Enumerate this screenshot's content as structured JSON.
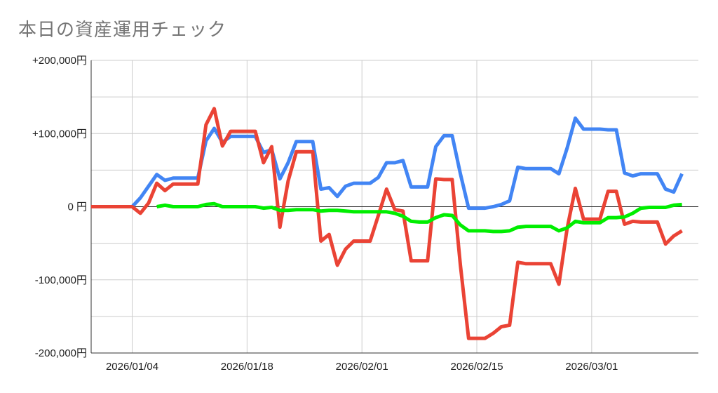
{
  "title": "本日の資産運用チェック",
  "colors": {
    "series_a": "#4285f4",
    "series_b": "#ea4335",
    "series_c": "#00ee00",
    "grid": "#cccccc",
    "zero_line": "#333333"
  },
  "chart_data": {
    "type": "line",
    "title": "本日の資産運用チェック",
    "xlabel": "",
    "ylabel": "",
    "x_range": [
      "2025-12-30",
      "2026-03-14"
    ],
    "ylim": [
      -200000,
      200000
    ],
    "yticks": [
      {
        "value": 200000,
        "label": "+200,000円"
      },
      {
        "value": 100000,
        "label": "+100,000円"
      },
      {
        "value": 0,
        "label": "0 円"
      },
      {
        "value": -100000,
        "label": "-100,000円"
      },
      {
        "value": -200000,
        "label": "-200,000円"
      }
    ],
    "xticks": [
      {
        "date": "2026-01-04",
        "label": "2026/01/04"
      },
      {
        "date": "2026-01-18",
        "label": "2026/01/18"
      },
      {
        "date": "2026-02-01",
        "label": "2026/02/01"
      },
      {
        "date": "2026-02-15",
        "label": "2026/02/15"
      },
      {
        "date": "2026-03-01",
        "label": "2026/03/01"
      }
    ],
    "grid": true,
    "legend": "none",
    "series": [
      {
        "color": "#4285f4",
        "points": [
          [
            "2025-12-30",
            0
          ],
          [
            "2025-12-31",
            0
          ],
          [
            "2026-01-01",
            0
          ],
          [
            "2026-01-02",
            0
          ],
          [
            "2026-01-03",
            0
          ],
          [
            "2026-01-04",
            0
          ],
          [
            "2026-01-05",
            12000
          ],
          [
            "2026-01-06",
            28000
          ],
          [
            "2026-01-07",
            44000
          ],
          [
            "2026-01-08",
            36000
          ],
          [
            "2026-01-09",
            39000
          ],
          [
            "2026-01-10",
            39000
          ],
          [
            "2026-01-11",
            39000
          ],
          [
            "2026-01-12",
            39000
          ],
          [
            "2026-01-13",
            90000
          ],
          [
            "2026-01-14",
            107000
          ],
          [
            "2026-01-15",
            88000
          ],
          [
            "2026-01-16",
            96000
          ],
          [
            "2026-01-17",
            96000
          ],
          [
            "2026-01-18",
            96000
          ],
          [
            "2026-01-19",
            96000
          ],
          [
            "2026-01-20",
            74000
          ],
          [
            "2026-01-21",
            78000
          ],
          [
            "2026-01-22",
            38000
          ],
          [
            "2026-01-23",
            60000
          ],
          [
            "2026-01-24",
            89000
          ],
          [
            "2026-01-25",
            89000
          ],
          [
            "2026-01-26",
            89000
          ],
          [
            "2026-01-27",
            24000
          ],
          [
            "2026-01-28",
            26000
          ],
          [
            "2026-01-29",
            14000
          ],
          [
            "2026-01-30",
            28000
          ],
          [
            "2026-01-31",
            32000
          ],
          [
            "2026-02-01",
            32000
          ],
          [
            "2026-02-02",
            32000
          ],
          [
            "2026-02-03",
            40000
          ],
          [
            "2026-02-04",
            60000
          ],
          [
            "2026-02-05",
            60000
          ],
          [
            "2026-02-06",
            63000
          ],
          [
            "2026-02-07",
            27000
          ],
          [
            "2026-02-08",
            27000
          ],
          [
            "2026-02-09",
            27000
          ],
          [
            "2026-02-10",
            82000
          ],
          [
            "2026-02-11",
            97000
          ],
          [
            "2026-02-12",
            97000
          ],
          [
            "2026-02-13",
            45000
          ],
          [
            "2026-02-14",
            -2000
          ],
          [
            "2026-02-15",
            -2000
          ],
          [
            "2026-02-16",
            -2000
          ],
          [
            "2026-02-17",
            0
          ],
          [
            "2026-02-18",
            3000
          ],
          [
            "2026-02-19",
            8000
          ],
          [
            "2026-02-20",
            54000
          ],
          [
            "2026-02-21",
            52000
          ],
          [
            "2026-02-22",
            52000
          ],
          [
            "2026-02-23",
            52000
          ],
          [
            "2026-02-24",
            52000
          ],
          [
            "2026-02-25",
            45000
          ],
          [
            "2026-02-26",
            80000
          ],
          [
            "2026-02-27",
            121000
          ],
          [
            "2026-02-28",
            106000
          ],
          [
            "2026-03-01",
            106000
          ],
          [
            "2026-03-02",
            106000
          ],
          [
            "2026-03-03",
            105000
          ],
          [
            "2026-03-04",
            105000
          ],
          [
            "2026-03-05",
            46000
          ],
          [
            "2026-03-06",
            42000
          ],
          [
            "2026-03-07",
            45000
          ],
          [
            "2026-03-08",
            45000
          ],
          [
            "2026-03-09",
            45000
          ],
          [
            "2026-03-10",
            24000
          ],
          [
            "2026-03-11",
            20000
          ],
          [
            "2026-03-12",
            45000
          ]
        ]
      },
      {
        "color": "#ea4335",
        "points": [
          [
            "2025-12-30",
            0
          ],
          [
            "2025-12-31",
            0
          ],
          [
            "2026-01-01",
            0
          ],
          [
            "2026-01-02",
            0
          ],
          [
            "2026-01-03",
            0
          ],
          [
            "2026-01-04",
            0
          ],
          [
            "2026-01-05",
            -9000
          ],
          [
            "2026-01-06",
            5000
          ],
          [
            "2026-01-07",
            32000
          ],
          [
            "2026-01-08",
            22000
          ],
          [
            "2026-01-09",
            31000
          ],
          [
            "2026-01-10",
            31000
          ],
          [
            "2026-01-11",
            31000
          ],
          [
            "2026-01-12",
            31000
          ],
          [
            "2026-01-13",
            112000
          ],
          [
            "2026-01-14",
            134000
          ],
          [
            "2026-01-15",
            83000
          ],
          [
            "2026-01-16",
            103000
          ],
          [
            "2026-01-17",
            103000
          ],
          [
            "2026-01-18",
            103000
          ],
          [
            "2026-01-19",
            103000
          ],
          [
            "2026-01-20",
            60000
          ],
          [
            "2026-01-21",
            82000
          ],
          [
            "2026-01-22",
            -28000
          ],
          [
            "2026-01-23",
            35000
          ],
          [
            "2026-01-24",
            75000
          ],
          [
            "2026-01-25",
            75000
          ],
          [
            "2026-01-26",
            75000
          ],
          [
            "2026-01-27",
            -47000
          ],
          [
            "2026-01-28",
            -38000
          ],
          [
            "2026-01-29",
            -80000
          ],
          [
            "2026-01-30",
            -58000
          ],
          [
            "2026-01-31",
            -47000
          ],
          [
            "2026-02-01",
            -47000
          ],
          [
            "2026-02-02",
            -47000
          ],
          [
            "2026-02-03",
            -12000
          ],
          [
            "2026-02-04",
            24000
          ],
          [
            "2026-02-05",
            -4000
          ],
          [
            "2026-02-06",
            -6000
          ],
          [
            "2026-02-07",
            -74000
          ],
          [
            "2026-02-08",
            -74000
          ],
          [
            "2026-02-09",
            -74000
          ],
          [
            "2026-02-10",
            38000
          ],
          [
            "2026-02-11",
            37000
          ],
          [
            "2026-02-12",
            37000
          ],
          [
            "2026-02-13",
            -80000
          ],
          [
            "2026-02-14",
            -180000
          ],
          [
            "2026-02-15",
            -180000
          ],
          [
            "2026-02-16",
            -180000
          ],
          [
            "2026-02-17",
            -173000
          ],
          [
            "2026-02-18",
            -164000
          ],
          [
            "2026-02-19",
            -162000
          ],
          [
            "2026-02-20",
            -76000
          ],
          [
            "2026-02-21",
            -78000
          ],
          [
            "2026-02-22",
            -78000
          ],
          [
            "2026-02-23",
            -78000
          ],
          [
            "2026-02-24",
            -78000
          ],
          [
            "2026-02-25",
            -106000
          ],
          [
            "2026-02-26",
            -30000
          ],
          [
            "2026-02-27",
            25000
          ],
          [
            "2026-02-28",
            -17000
          ],
          [
            "2026-03-01",
            -17000
          ],
          [
            "2026-03-02",
            -17000
          ],
          [
            "2026-03-03",
            21000
          ],
          [
            "2026-03-04",
            21000
          ],
          [
            "2026-03-05",
            -24000
          ],
          [
            "2026-03-06",
            -20000
          ],
          [
            "2026-03-07",
            -21000
          ],
          [
            "2026-03-08",
            -21000
          ],
          [
            "2026-03-09",
            -21000
          ],
          [
            "2026-03-10",
            -51000
          ],
          [
            "2026-03-11",
            -40000
          ],
          [
            "2026-03-12",
            -33000
          ]
        ]
      },
      {
        "color": "#00ee00",
        "points": [
          [
            "2026-01-07",
            0
          ],
          [
            "2026-01-08",
            2000
          ],
          [
            "2026-01-09",
            0
          ],
          [
            "2026-01-10",
            0
          ],
          [
            "2026-01-11",
            0
          ],
          [
            "2026-01-12",
            0
          ],
          [
            "2026-01-13",
            3000
          ],
          [
            "2026-01-14",
            4000
          ],
          [
            "2026-01-15",
            0
          ],
          [
            "2026-01-16",
            0
          ],
          [
            "2026-01-17",
            0
          ],
          [
            "2026-01-18",
            0
          ],
          [
            "2026-01-19",
            0
          ],
          [
            "2026-01-20",
            -2000
          ],
          [
            "2026-01-21",
            -1000
          ],
          [
            "2026-01-22",
            -5000
          ],
          [
            "2026-01-23",
            -5000
          ],
          [
            "2026-01-24",
            -4000
          ],
          [
            "2026-01-25",
            -4000
          ],
          [
            "2026-01-26",
            -4000
          ],
          [
            "2026-01-27",
            -6000
          ],
          [
            "2026-01-28",
            -5000
          ],
          [
            "2026-01-29",
            -5000
          ],
          [
            "2026-01-30",
            -6000
          ],
          [
            "2026-01-31",
            -7000
          ],
          [
            "2026-02-01",
            -7000
          ],
          [
            "2026-02-02",
            -7000
          ],
          [
            "2026-02-03",
            -7000
          ],
          [
            "2026-02-04",
            -7000
          ],
          [
            "2026-02-05",
            -9000
          ],
          [
            "2026-02-06",
            -13000
          ],
          [
            "2026-02-07",
            -20000
          ],
          [
            "2026-02-08",
            -21000
          ],
          [
            "2026-02-09",
            -21000
          ],
          [
            "2026-02-10",
            -15000
          ],
          [
            "2026-02-11",
            -11000
          ],
          [
            "2026-02-12",
            -12000
          ],
          [
            "2026-02-13",
            -25000
          ],
          [
            "2026-02-14",
            -33000
          ],
          [
            "2026-02-15",
            -33000
          ],
          [
            "2026-02-16",
            -33000
          ],
          [
            "2026-02-17",
            -34000
          ],
          [
            "2026-02-18",
            -34000
          ],
          [
            "2026-02-19",
            -33000
          ],
          [
            "2026-02-20",
            -28000
          ],
          [
            "2026-02-21",
            -27000
          ],
          [
            "2026-02-22",
            -27000
          ],
          [
            "2026-02-23",
            -27000
          ],
          [
            "2026-02-24",
            -27000
          ],
          [
            "2026-02-25",
            -33000
          ],
          [
            "2026-02-26",
            -29000
          ],
          [
            "2026-02-27",
            -20000
          ],
          [
            "2026-02-28",
            -22000
          ],
          [
            "2026-03-01",
            -22000
          ],
          [
            "2026-03-02",
            -22000
          ],
          [
            "2026-03-03",
            -15000
          ],
          [
            "2026-03-04",
            -15000
          ],
          [
            "2026-03-05",
            -14000
          ],
          [
            "2026-03-06",
            -9000
          ],
          [
            "2026-03-07",
            -2000
          ],
          [
            "2026-03-08",
            -1000
          ],
          [
            "2026-03-09",
            -1000
          ],
          [
            "2026-03-10",
            -1000
          ],
          [
            "2026-03-11",
            2000
          ],
          [
            "2026-03-12",
            3000
          ]
        ]
      }
    ]
  }
}
